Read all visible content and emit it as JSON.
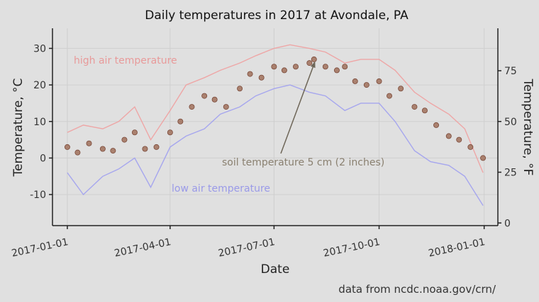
{
  "chart_data": {
    "type": "line",
    "title": "Daily temperatures in 2017 at Avondale, PA",
    "xlabel": "Date",
    "ylabel": "Temperature, °C",
    "ylabel_right": "Temperature, °F",
    "caption": "data from ncdc.noaa.gov/crn/",
    "x_ticks": [
      "2017-01-01",
      "2017-04-01",
      "2017-07-01",
      "2017-10-01",
      "2018-01-01"
    ],
    "y_ticks": [
      -10,
      0,
      10,
      20,
      30
    ],
    "y_ticks_right": [
      0,
      25,
      50,
      75
    ],
    "xlim": [
      "2016-12-19",
      "2018-01-13"
    ],
    "ylim": [
      -18.5,
      35.5
    ],
    "grid": true,
    "series": [
      {
        "name": "high air temperature",
        "color": "#f0a0a0",
        "style": "line",
        "x": [
          "2017-01-01",
          "2017-01-15",
          "2017-02-01",
          "2017-02-15",
          "2017-03-01",
          "2017-03-15",
          "2017-04-01",
          "2017-04-15",
          "2017-05-01",
          "2017-05-15",
          "2017-06-01",
          "2017-06-15",
          "2017-07-01",
          "2017-07-15",
          "2017-08-01",
          "2017-08-15",
          "2017-09-01",
          "2017-09-15",
          "2017-10-01",
          "2017-10-15",
          "2017-11-01",
          "2017-11-15",
          "2017-12-01",
          "2017-12-15",
          "2017-12-31"
        ],
        "values": [
          7,
          9,
          8,
          10,
          14,
          5,
          13,
          20,
          22,
          24,
          26,
          28,
          30,
          31,
          30,
          29,
          26,
          27,
          27,
          24,
          18,
          15,
          12,
          8,
          -4
        ]
      },
      {
        "name": "low air temperature",
        "color": "#a0a0f0",
        "style": "line",
        "x": [
          "2017-01-01",
          "2017-01-15",
          "2017-02-01",
          "2017-02-15",
          "2017-03-01",
          "2017-03-15",
          "2017-04-01",
          "2017-04-15",
          "2017-05-01",
          "2017-05-15",
          "2017-06-01",
          "2017-06-15",
          "2017-07-01",
          "2017-07-15",
          "2017-08-01",
          "2017-08-15",
          "2017-09-01",
          "2017-09-15",
          "2017-10-01",
          "2017-10-15",
          "2017-11-01",
          "2017-11-15",
          "2017-12-01",
          "2017-12-15",
          "2017-12-31"
        ],
        "values": [
          -4,
          -10,
          -5,
          -3,
          0,
          -8,
          3,
          6,
          8,
          12,
          14,
          17,
          19,
          20,
          18,
          17,
          13,
          15,
          15,
          10,
          2,
          -1,
          -2,
          -5,
          -13
        ]
      },
      {
        "name": "soil temperature 5 cm (2 inches)",
        "color": "#a0705a",
        "style": "points",
        "x": [
          "2017-01-01",
          "2017-01-10",
          "2017-01-20",
          "2017-02-01",
          "2017-02-10",
          "2017-02-20",
          "2017-03-01",
          "2017-03-10",
          "2017-03-20",
          "2017-04-01",
          "2017-04-10",
          "2017-04-20",
          "2017-05-01",
          "2017-05-10",
          "2017-05-20",
          "2017-06-01",
          "2017-06-10",
          "2017-06-20",
          "2017-07-01",
          "2017-07-10",
          "2017-07-20",
          "2017-08-01",
          "2017-08-05",
          "2017-08-15",
          "2017-08-25",
          "2017-09-01",
          "2017-09-10",
          "2017-09-20",
          "2017-10-01",
          "2017-10-10",
          "2017-10-20",
          "2017-11-01",
          "2017-11-10",
          "2017-11-20",
          "2017-12-01",
          "2017-12-10",
          "2017-12-20",
          "2017-12-31"
        ],
        "values": [
          3,
          1.5,
          4,
          2.5,
          2,
          5,
          7,
          2.5,
          3,
          7,
          10,
          14,
          17,
          16,
          14,
          19,
          23,
          22,
          25,
          24,
          25,
          26,
          27,
          25,
          24,
          25,
          21,
          20,
          21,
          17,
          19,
          14,
          13,
          9,
          6,
          5,
          3,
          0
        ]
      }
    ],
    "annotations": [
      {
        "text": "high air temperature",
        "color": "#e89a9a"
      },
      {
        "text": "low air temperature",
        "color": "#9a9ae8"
      },
      {
        "text": "soil temperature 5 cm (2 inches)",
        "color": "#8a8070",
        "arrow_to": [
          "2017-08-06",
          26.5
        ]
      }
    ]
  }
}
